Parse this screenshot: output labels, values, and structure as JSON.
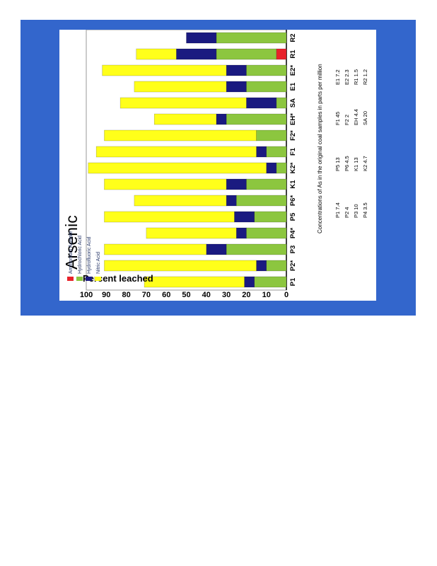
{
  "colors": {
    "frame": "#3366cc",
    "panel": "#ffffff",
    "ammonium_acetate": "#e8222a",
    "hydrochloric_acid": "#8cc63f",
    "hydrofluoric_acid": "#1a1a80",
    "nitric_acid": "#ffff1a"
  },
  "chart_data": {
    "type": "bar",
    "orientation": "stacked, rotated 90 degrees",
    "title": "Arsenic",
    "ylabel": "Percent leached",
    "ylim": [
      0,
      100
    ],
    "yticks": [
      "0",
      "10",
      "20",
      "30",
      "40",
      "50",
      "60",
      "70",
      "80",
      "90",
      "100"
    ],
    "grid": false,
    "legend_position": "top-left",
    "categories": [
      "P1",
      "P2*",
      "P3",
      "P4*",
      "P5",
      "P6*",
      "K1",
      "K2*",
      "F1",
      "F2*",
      "EH*",
      "SA",
      "E1",
      "E2*",
      "R1",
      "R2"
    ],
    "series": [
      {
        "name": "Ammonium Acetate",
        "color_key": "ammonium_acetate",
        "values": [
          0,
          0,
          0,
          0,
          0,
          0,
          0,
          0,
          0,
          0,
          0,
          0,
          0,
          0,
          5,
          0
        ]
      },
      {
        "name": "Hydrochloric Acid",
        "color_key": "hydrochloric_acid",
        "values": [
          16,
          10,
          30,
          20,
          16,
          25,
          20,
          5,
          10,
          15,
          30,
          5,
          20,
          20,
          30,
          35
        ]
      },
      {
        "name": "Hydrofluoric Acid",
        "color_key": "hydrofluoric_acid",
        "values": [
          5,
          5,
          10,
          5,
          10,
          5,
          10,
          5,
          5,
          0,
          5,
          15,
          10,
          10,
          20,
          15
        ]
      },
      {
        "name": "Nitric Acid",
        "color_key": "nitric_acid",
        "values": [
          50,
          76,
          51,
          45,
          65,
          46,
          61,
          89,
          80,
          76,
          31,
          63,
          46,
          62,
          20,
          0
        ]
      }
    ],
    "annotation": {
      "heading": "Concentrations of As in the original coal samples in parts per million",
      "columns": [
        [
          "P1  7.4",
          "P2  4",
          "P3  10",
          "P4  3.5"
        ],
        [
          "P5  13",
          "P6  4.5",
          "K1  13",
          "K2  4.7"
        ],
        [
          "F1  45",
          "F2  2",
          "EH  4.4",
          "SA  20"
        ],
        [
          "E1  7.2",
          "E2  2.3",
          "R1  1.5",
          "R2  1.2"
        ]
      ]
    }
  }
}
